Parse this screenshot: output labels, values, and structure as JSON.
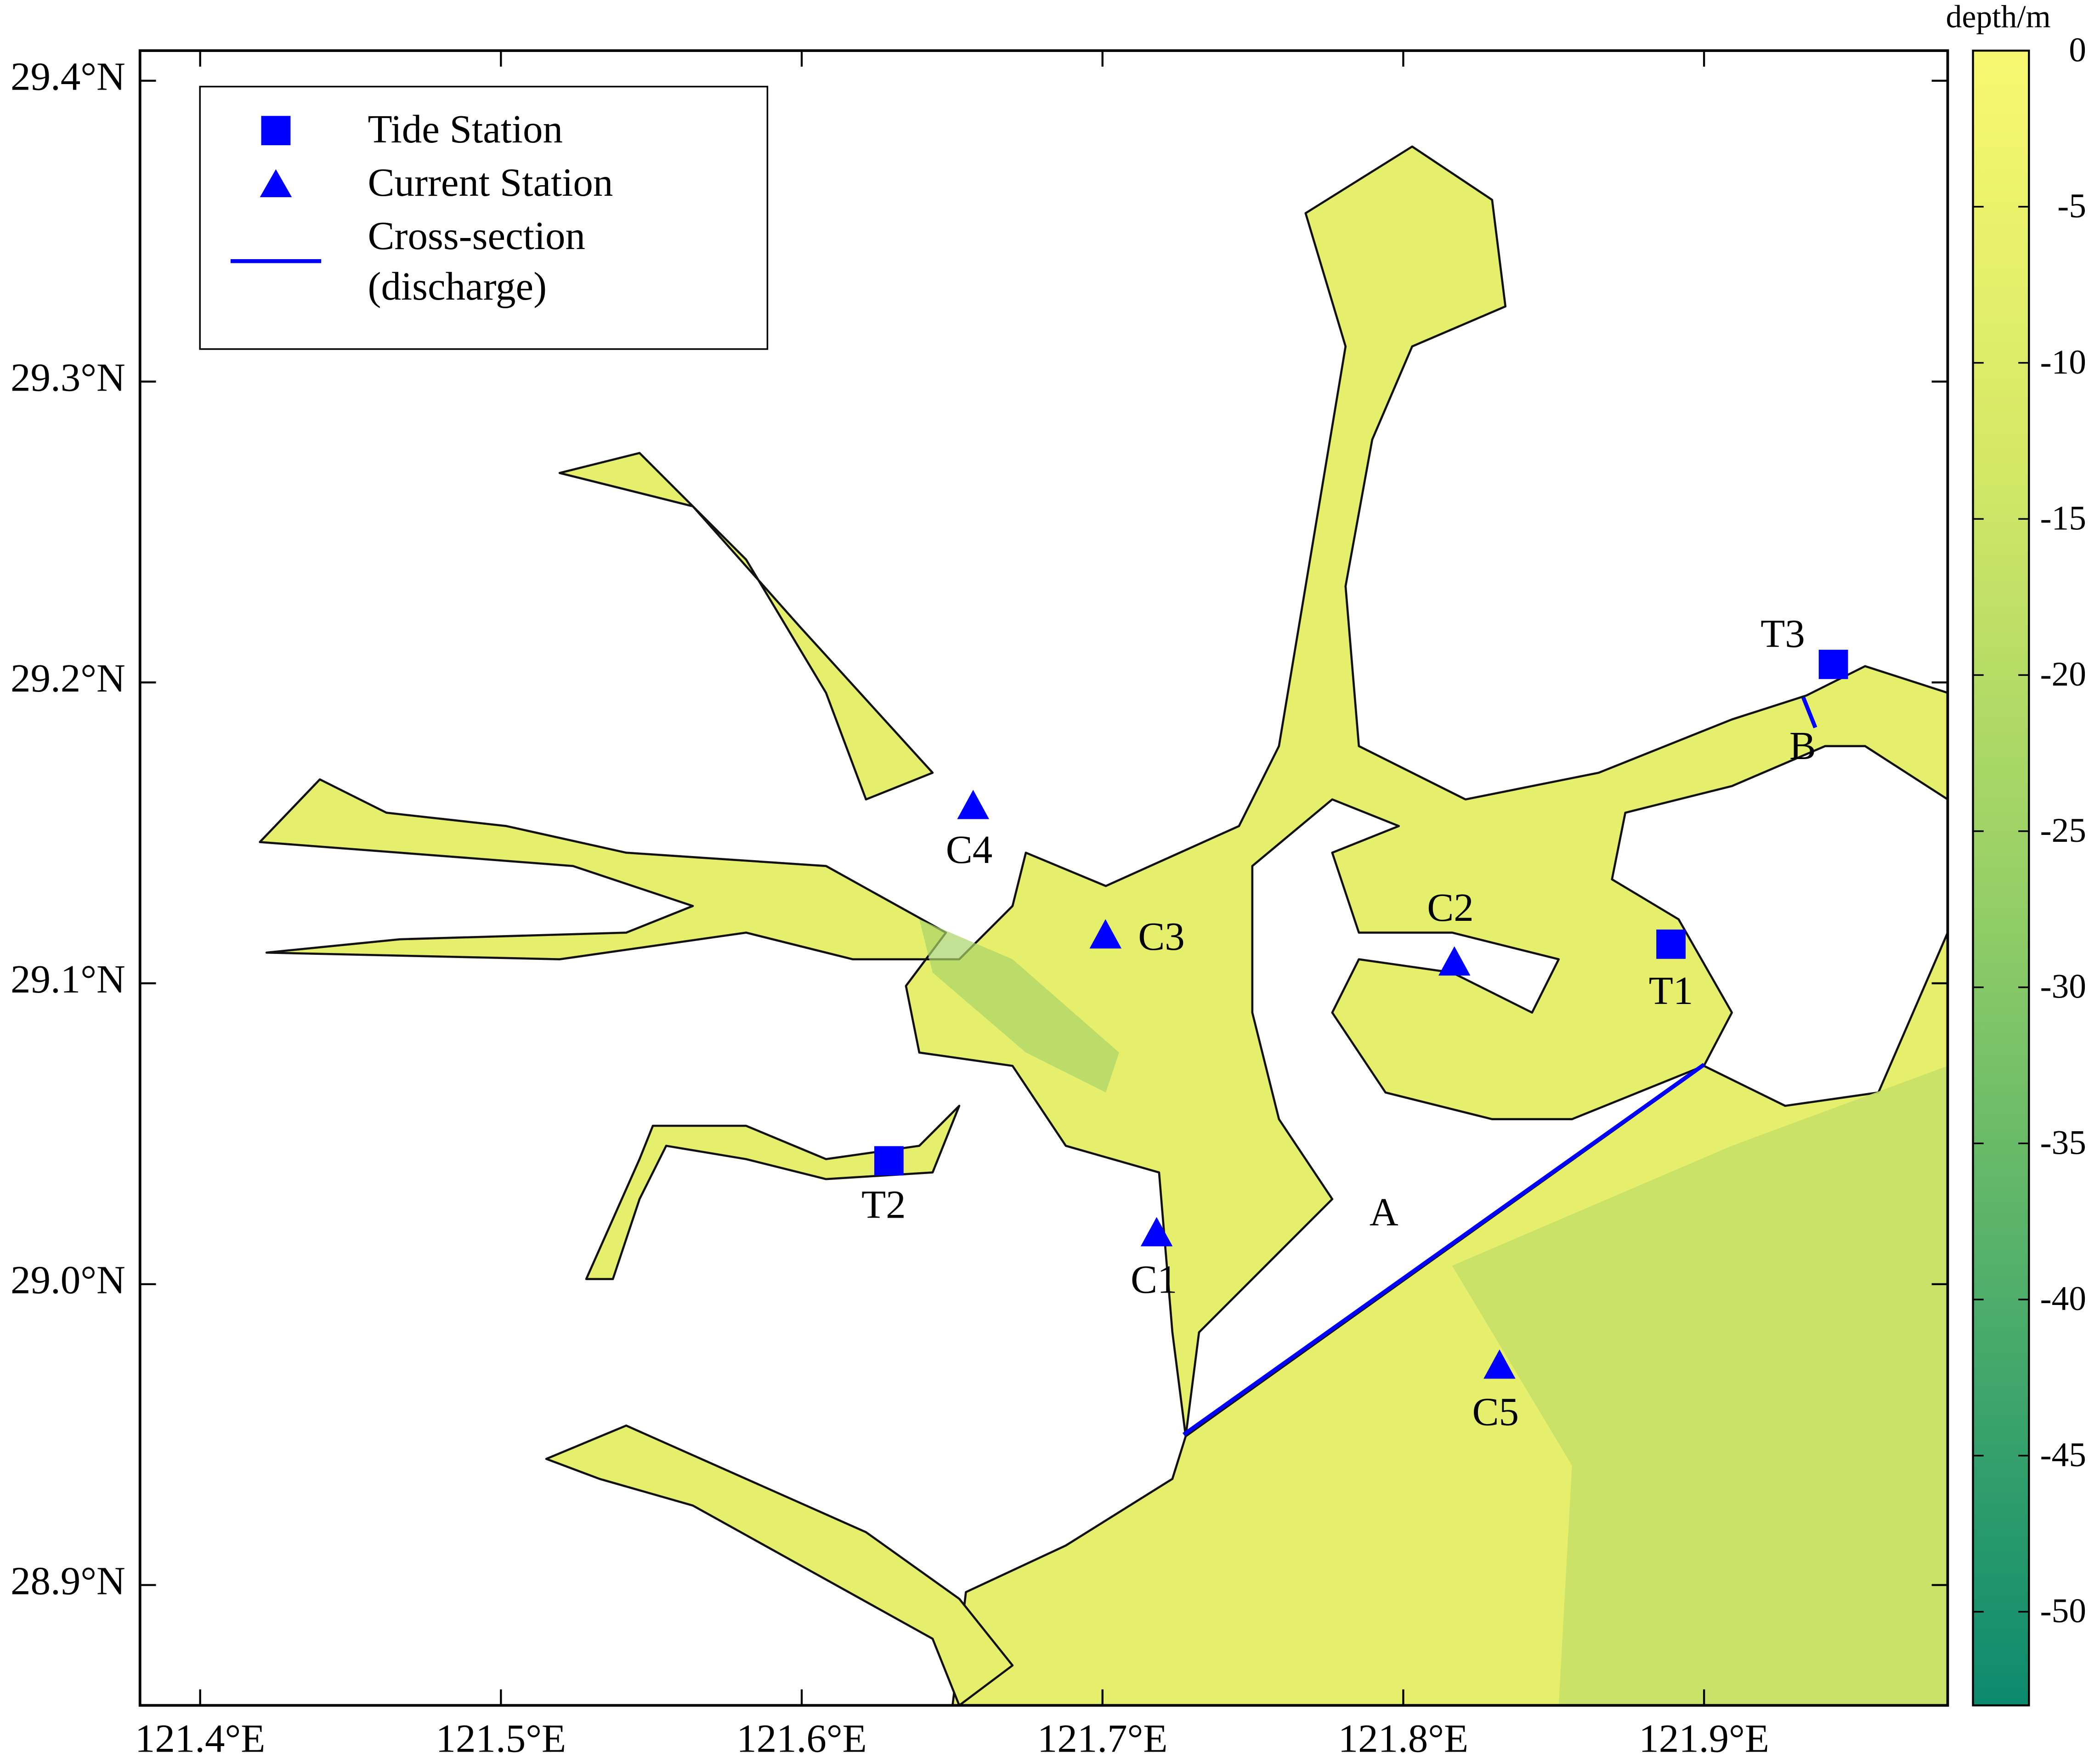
{
  "map": {
    "xlim": [
      121.38,
      121.981
    ],
    "ylim": [
      28.86,
      29.41
    ],
    "xticks": [
      {
        "value": 121.4,
        "label": "121.4°E"
      },
      {
        "value": 121.5,
        "label": "121.5°E"
      },
      {
        "value": 121.6,
        "label": "121.6°E"
      },
      {
        "value": 121.7,
        "label": "121.7°E"
      },
      {
        "value": 121.8,
        "label": "121.8°E"
      },
      {
        "value": 121.9,
        "label": "121.9°E"
      }
    ],
    "yticks": [
      {
        "value": 28.9,
        "label": "28.9°N"
      },
      {
        "value": 29.0,
        "label": "29.0°N"
      },
      {
        "value": 29.1,
        "label": "29.1°N"
      },
      {
        "value": 29.2,
        "label": "29.2°N"
      },
      {
        "value": 29.3,
        "label": "29.3°N"
      },
      {
        "value": 29.4,
        "label": "29.4°N"
      }
    ],
    "color": "#0000ff",
    "legend": {
      "tide": "Tide Station",
      "current": "Current Station",
      "section": [
        "Cross-section",
        "(discharge)"
      ]
    },
    "tide_stations": [
      {
        "name": "T1",
        "lon": 121.889,
        "lat": 29.113
      },
      {
        "name": "T2",
        "lon": 121.629,
        "lat": 29.041
      },
      {
        "name": "T3",
        "lon": 121.943,
        "lat": 29.206
      }
    ],
    "current_stations": [
      {
        "name": "C1",
        "lon": 121.718,
        "lat": 29.017
      },
      {
        "name": "C2",
        "lon": 121.817,
        "lat": 29.107
      },
      {
        "name": "C3",
        "lon": 121.701,
        "lat": 29.116
      },
      {
        "name": "C4",
        "lon": 121.657,
        "lat": 29.159
      },
      {
        "name": "C5",
        "lon": 121.832,
        "lat": 28.973
      }
    ],
    "sections": [
      {
        "name": "A",
        "lon": [
          121.727,
          121.9
        ],
        "lat": [
          28.95,
          29.073
        ]
      },
      {
        "name": "B",
        "lon": [
          121.933,
          121.937
        ],
        "lat": [
          29.195,
          29.185
        ]
      }
    ],
    "colorbar": {
      "label": "depth/m",
      "lim": [
        -53,
        0
      ],
      "ticks": [
        0,
        -5,
        -10,
        -15,
        -20,
        -25,
        -30,
        -35,
        -40,
        -45,
        -50
      ]
    }
  }
}
